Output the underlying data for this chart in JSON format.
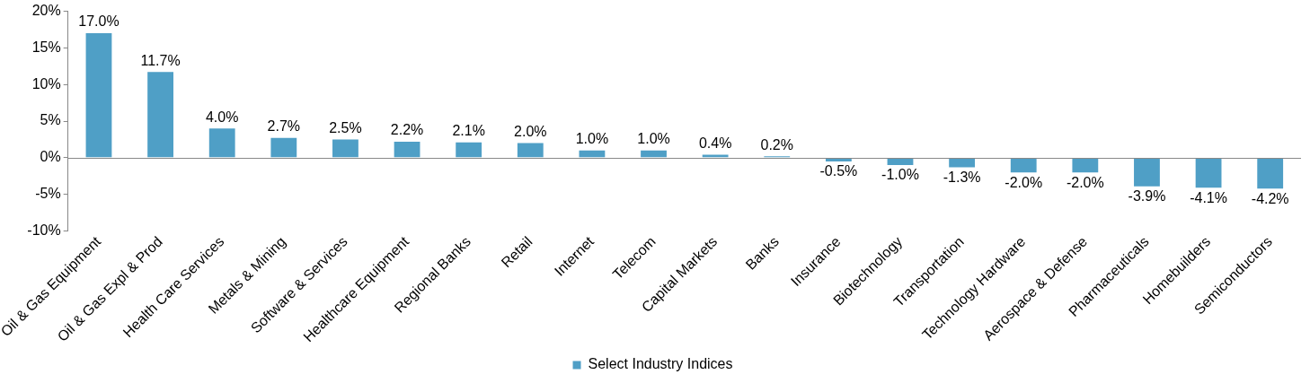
{
  "chart_data": {
    "type": "bar",
    "categories": [
      "Oil & Gas Equipment",
      "Oil & Gas Expl & Prod",
      "Health Care Services",
      "Metals & Mining",
      "Software & Services",
      "Healthcare Equipment",
      "Regional Banks",
      "Retail",
      "Internet",
      "Telecom",
      "Capital Markets",
      "Banks",
      "Insurance",
      "Biotechnology",
      "Transportation",
      "Technology Hardware",
      "Aerospace & Defense",
      "Pharmaceuticals",
      "Homebuilders",
      "Semiconductors"
    ],
    "series": [
      {
        "name": "Select Industry Indices",
        "color": "#4f9fc6",
        "values": [
          17.0,
          11.7,
          4.0,
          2.7,
          2.5,
          2.2,
          2.1,
          2.0,
          1.0,
          1.0,
          0.4,
          0.2,
          -0.5,
          -1.0,
          -1.3,
          -2.0,
          -2.0,
          -3.9,
          -4.1,
          -4.2
        ],
        "value_labels": [
          "17.0%",
          "11.7%",
          "4.0%",
          "2.7%",
          "2.5%",
          "2.2%",
          "2.1%",
          "2.0%",
          "1.0%",
          "1.0%",
          "0.4%",
          "0.2%",
          "-0.5%",
          "-1.0%",
          "-1.3%",
          "-2.0%",
          "-2.0%",
          "-3.9%",
          "-4.1%",
          "-4.2%"
        ]
      }
    ],
    "ylim": [
      -10,
      20
    ],
    "yticks": [
      {
        "value": -10,
        "label": "-10%"
      },
      {
        "value": -5,
        "label": "-5%"
      },
      {
        "value": 0,
        "label": "0%"
      },
      {
        "value": 5,
        "label": "5%"
      },
      {
        "value": 10,
        "label": "10%"
      },
      {
        "value": 15,
        "label": "15%"
      },
      {
        "value": 20,
        "label": "20%"
      }
    ],
    "legend": "bottom"
  }
}
